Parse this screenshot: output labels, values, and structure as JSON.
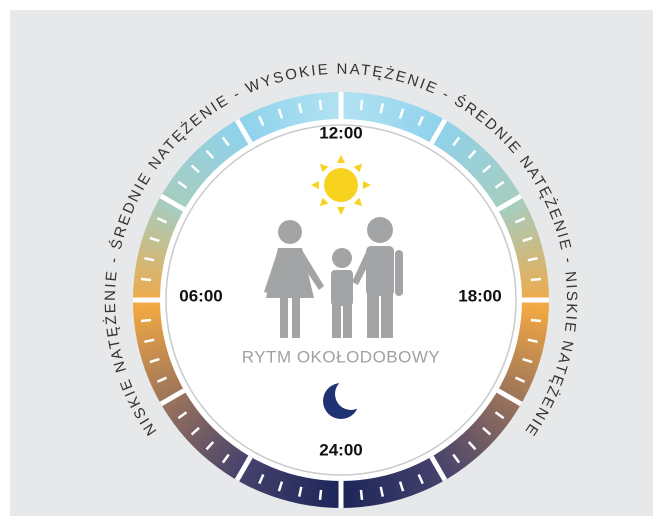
{
  "arc_text": "NISKIE NATĘŻENIE  -  ŚREDNIE NATĘŻENIE - WYSOKIE NATĘŻENIE - ŚREDNIE NATĘŻENIE - NISKIE NATĘŻENIE",
  "times": {
    "top": "12:00",
    "left": "06:00",
    "right": "18:00",
    "bottom": "24:00"
  },
  "center_label": "RYTM OKOŁODOBOWY"
}
